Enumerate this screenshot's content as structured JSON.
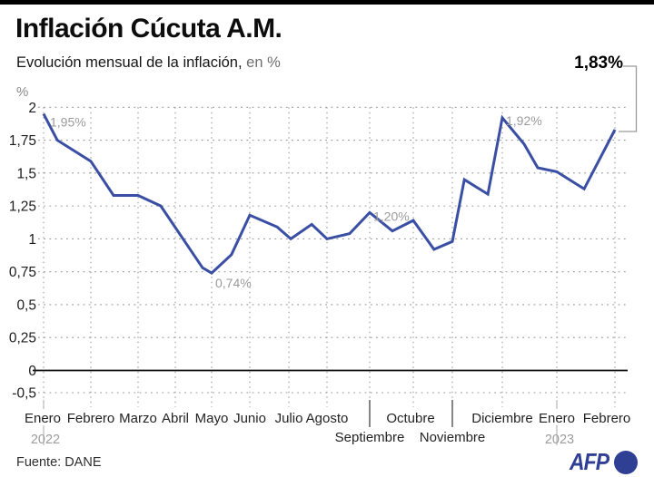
{
  "header": {
    "title": "Inflación Cúcuta A.M.",
    "subtitle": "Evolución mensual de la inflación,",
    "subtitle_unit": "en %",
    "latest_value": "1,83%"
  },
  "footer": {
    "source": "Fuente: DANE",
    "brand": "AFP"
  },
  "colors": {
    "line": "#3A4FA4",
    "brand_blue": "#2E3F94",
    "grid": "#9A9A9A",
    "annotation": "#9B9B9B",
    "zero_line": "#0a0a0a",
    "ytick_text": "#1c1c1c",
    "month_text": "#232323",
    "year_text": "#9C9C9C",
    "unit_text": "#8A8A8A",
    "separator_dark": "#444444",
    "separator_gray": "#AAAAAA",
    "callout": "#9A9A9A"
  },
  "chart_data": {
    "type": "line",
    "title": "Inflación Cúcuta A.M.",
    "subtitle": "Evolución mensual de la inflación, en %",
    "y_unit_label": "%",
    "categories": [
      "Enero",
      "Febrero",
      "Marzo",
      "Abril",
      "Mayo",
      "Junio",
      "Julio",
      "Agosto",
      "Septiembre",
      "Octubre",
      "Noviembre",
      "Diciembre",
      "Enero",
      "Febrero"
    ],
    "staggered_category_indexes": [
      8,
      10
    ],
    "year_labels": [
      {
        "index": 0,
        "text": "2022"
      },
      {
        "index": 12,
        "text": "2023"
      }
    ],
    "series": [
      {
        "name": "Inflación mensual Cúcuta A.M. (%)",
        "values": [
          1.95,
          1.59,
          1.33,
          1.09,
          0.74,
          1.18,
          1.0,
          1.0,
          1.2,
          1.14,
          0.98,
          1.92,
          1.51,
          1.83
        ]
      }
    ],
    "ylim": [
      -0.5,
      2
    ],
    "yticks": [
      2,
      1.75,
      1.5,
      1.25,
      1,
      0.75,
      0.5,
      0.25,
      0,
      -0.5
    ],
    "ytick_labels": [
      "2",
      "1,75",
      "1,5",
      "1,25",
      "1",
      "0,75",
      "0,5",
      "0,25",
      "0",
      "-0,5"
    ],
    "grid": true,
    "legend": false,
    "annotations": [
      {
        "text": "1,95%",
        "month_index": 0,
        "value": 1.95
      },
      {
        "text": "0,74%",
        "month_index": 4,
        "value": 0.74
      },
      {
        "text": "1,20%",
        "month_index": 8,
        "value": 1.2
      },
      {
        "text": "1,92%",
        "month_index": 11,
        "value": 1.92
      },
      {
        "text": "1,83%",
        "month_index": 13,
        "value": 1.83,
        "placement": "header-callout"
      }
    ],
    "drawn_polyline": [
      [
        0.0,
        1.95
      ],
      [
        0.29,
        1.75
      ],
      [
        1.0,
        1.59
      ],
      [
        1.48,
        1.33
      ],
      [
        2.0,
        1.33
      ],
      [
        2.61,
        1.25
      ],
      [
        3.75,
        0.78
      ],
      [
        4.0,
        0.74
      ],
      [
        4.52,
        0.88
      ],
      [
        5.0,
        1.18
      ],
      [
        5.7,
        1.09
      ],
      [
        6.05,
        1.0
      ],
      [
        6.6,
        1.11
      ],
      [
        7.0,
        1.0
      ],
      [
        7.53,
        1.04
      ],
      [
        8.0,
        1.2
      ],
      [
        8.52,
        1.06
      ],
      [
        9.0,
        1.14
      ],
      [
        9.53,
        0.92
      ],
      [
        10.0,
        0.98
      ],
      [
        10.24,
        1.45
      ],
      [
        10.71,
        1.34
      ],
      [
        11.0,
        1.92
      ],
      [
        11.4,
        1.72
      ],
      [
        11.65,
        1.54
      ],
      [
        12.0,
        1.51
      ],
      [
        12.47,
        1.38
      ],
      [
        13.0,
        1.83
      ]
    ]
  }
}
